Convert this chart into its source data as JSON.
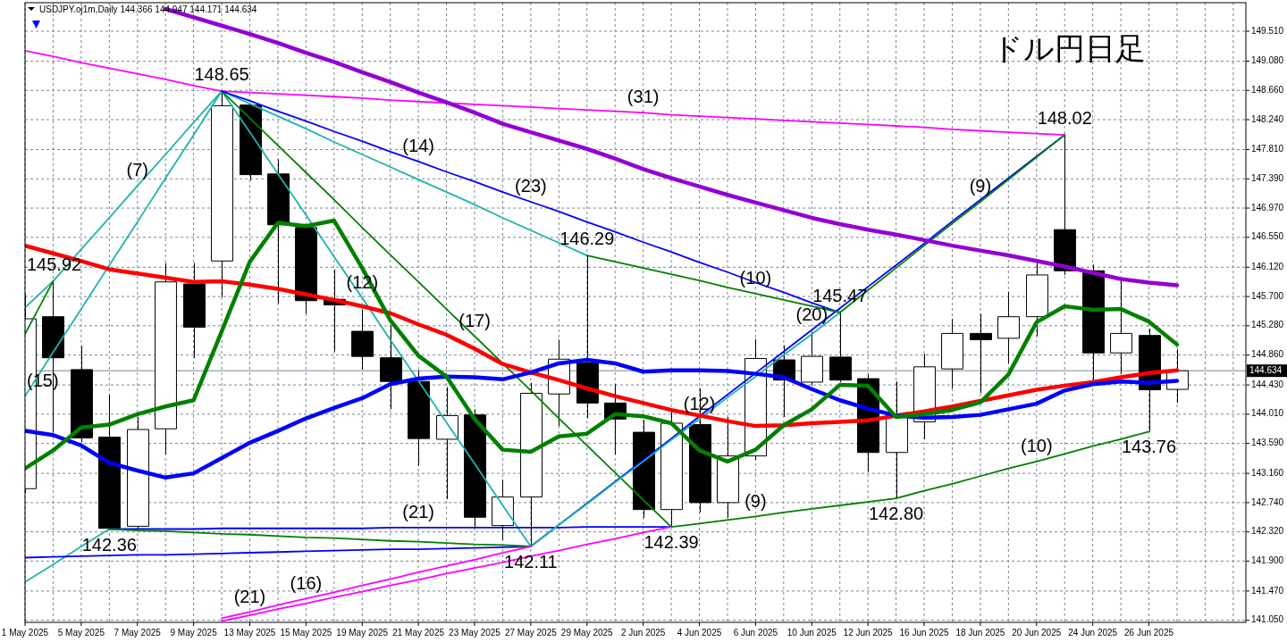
{
  "chart_data": {
    "type": "candlestick",
    "title": "ドル円日足",
    "subtitle": "USDJPY.oj1m,Daily  144.366 144.947 144.171 144.634",
    "categories": [
      "1 May 2025",
      null,
      "5 May 2025",
      null,
      "7 May 2025",
      null,
      "9 May 2025",
      null,
      "13 May 2025",
      null,
      "15 May 2025",
      null,
      "19 May 2025",
      null,
      "21 May 2025",
      null,
      "23 May 2025",
      null,
      "27 May 2025",
      null,
      "29 May 2025",
      null,
      "2 Jun 2025",
      null,
      "4 Jun 2025",
      null,
      "6 Jun 2025",
      null,
      "10 Jun 2025",
      null,
      "12 Jun 2025",
      null,
      "16 Jun 2025",
      null,
      "18 Jun 2025",
      null,
      "20 Jun 2025",
      null,
      "24 Jun 2025",
      null,
      "26 Jun 2025",
      null
    ],
    "ohlc": [
      [
        142.94,
        145.73,
        142.88,
        145.38
      ],
      [
        145.41,
        145.92,
        143.75,
        144.82
      ],
      [
        144.65,
        144.99,
        143.61,
        143.67
      ],
      [
        143.68,
        144.29,
        142.36,
        142.37
      ],
      [
        142.4,
        143.97,
        142.37,
        143.79
      ],
      [
        143.8,
        146.18,
        143.43,
        145.91
      ],
      [
        145.88,
        146.18,
        144.82,
        145.26
      ],
      [
        146.21,
        148.65,
        145.69,
        148.44
      ],
      [
        148.45,
        148.47,
        147.37,
        147.45
      ],
      [
        147.46,
        147.67,
        145.6,
        146.73
      ],
      [
        146.69,
        146.72,
        145.45,
        145.64
      ],
      [
        145.66,
        146.09,
        144.91,
        145.58
      ],
      [
        145.2,
        145.51,
        144.65,
        144.84
      ],
      [
        144.82,
        145.28,
        144.08,
        144.48
      ],
      [
        144.48,
        144.64,
        143.27,
        143.66
      ],
      [
        143.65,
        144.4,
        142.79,
        143.99
      ],
      [
        144.0,
        144.08,
        142.37,
        142.53
      ],
      [
        142.41,
        143.07,
        142.2,
        142.82
      ],
      [
        142.82,
        144.46,
        142.11,
        144.31
      ],
      [
        144.3,
        145.08,
        143.84,
        144.8
      ],
      [
        144.75,
        146.29,
        143.95,
        144.17
      ],
      [
        144.17,
        144.44,
        143.43,
        143.94
      ],
      [
        143.75,
        143.93,
        142.52,
        142.64
      ],
      [
        142.64,
        144.05,
        142.39,
        143.88
      ],
      [
        143.86,
        144.38,
        142.6,
        142.74
      ],
      [
        142.74,
        143.97,
        142.52,
        143.41
      ],
      [
        143.41,
        145.09,
        143.35,
        144.81
      ],
      [
        144.79,
        145.0,
        143.97,
        144.5
      ],
      [
        144.47,
        145.19,
        144.42,
        144.84
      ],
      [
        144.83,
        145.47,
        144.47,
        144.5
      ],
      [
        144.52,
        144.58,
        143.18,
        143.46
      ],
      [
        143.46,
        144.48,
        142.8,
        143.99
      ],
      [
        143.9,
        144.88,
        143.65,
        144.69
      ],
      [
        144.66,
        145.38,
        144.38,
        145.17
      ],
      [
        145.17,
        145.45,
        144.31,
        145.08
      ],
      [
        145.1,
        145.77,
        144.74,
        145.41
      ],
      [
        145.41,
        146.21,
        145.13,
        146.01
      ],
      [
        146.66,
        148.02,
        146.01,
        146.07
      ],
      [
        146.07,
        146.16,
        144.5,
        144.89
      ],
      [
        144.89,
        145.94,
        144.59,
        145.17
      ],
      [
        145.14,
        145.24,
        143.76,
        144.36
      ],
      [
        144.366,
        144.947,
        144.171,
        144.634
      ]
    ],
    "series": [
      {
        "type": "line",
        "color": "#20b2aa",
        "values": [
          145.54,
          145.92,
          146.38,
          146.83,
          147.29,
          147.74,
          148.2,
          148.65,
          null,
          null,
          null,
          null,
          null,
          null,
          null,
          null,
          null,
          null,
          null,
          null,
          null,
          null,
          null,
          null,
          null,
          null,
          null,
          null,
          null,
          null,
          null,
          null,
          null,
          null,
          null,
          null,
          null,
          null,
          null,
          null,
          null,
          null
        ]
      },
      {
        "type": "line",
        "color": "#008000",
        "values": [
          145.16,
          145.92,
          null,
          null,
          null,
          null,
          null,
          null,
          null,
          null,
          null,
          null,
          null,
          null,
          null,
          null,
          null,
          null,
          null,
          null,
          null,
          null,
          null,
          null,
          null,
          null,
          null,
          null,
          null,
          null,
          null,
          null,
          null,
          null,
          null,
          null,
          null,
          null,
          null,
          null,
          null,
          null
        ]
      },
      {
        "type": "line",
        "color": "#20b2aa",
        "values": [
          144.27,
          144.9,
          145.52,
          146.15,
          146.77,
          147.4,
          148.02,
          148.65,
          null,
          null,
          null,
          null,
          null,
          null,
          null,
          null,
          null,
          null,
          null,
          null,
          null,
          null,
          null,
          null,
          null,
          null,
          null,
          null,
          null,
          null,
          null,
          null,
          null,
          null,
          null,
          null,
          null,
          null,
          null,
          null,
          null,
          null
        ]
      },
      {
        "type": "line",
        "color": "#20b2aa",
        "values": [
          141.6,
          141.85,
          142.11,
          142.36,
          null,
          null,
          null,
          null,
          null,
          null,
          null,
          null,
          null,
          null,
          null,
          null,
          null,
          null,
          null,
          null,
          null,
          null,
          null,
          null,
          null,
          null,
          null,
          null,
          null,
          null,
          null,
          null,
          null,
          null,
          null,
          null,
          null,
          null,
          null,
          null,
          null,
          null
        ]
      },
      {
        "type": "line",
        "color": "#0000ff",
        "values": [
          141.95,
          141.96,
          141.97,
          141.98,
          141.99,
          141.99,
          142.0,
          142.01,
          142.02,
          142.03,
          142.04,
          142.05,
          142.06,
          142.07,
          142.07,
          142.08,
          142.09,
          142.1,
          142.11,
          142.42,
          142.73,
          143.04,
          143.35,
          143.66,
          143.98,
          144.29,
          144.6,
          144.91,
          145.22,
          145.53,
          145.84,
          146.15,
          146.46,
          146.78,
          147.09,
          147.4,
          147.71,
          148.02,
          null,
          null,
          null,
          null
        ]
      },
      {
        "type": "line",
        "color": "#ff00ff",
        "values": [
          149.23,
          149.15,
          149.06,
          148.98,
          148.9,
          148.82,
          148.73,
          148.65,
          148.63,
          148.61,
          148.59,
          148.57,
          148.55,
          148.52,
          148.5,
          148.48,
          148.46,
          148.44,
          148.42,
          148.4,
          148.38,
          148.36,
          148.34,
          148.31,
          148.29,
          148.27,
          148.25,
          148.23,
          148.21,
          148.19,
          148.17,
          148.15,
          148.13,
          148.1,
          148.08,
          148.06,
          148.04,
          148.02,
          null,
          null,
          null,
          null
        ]
      },
      {
        "type": "line",
        "color": "#20b2aa",
        "values": [
          null,
          null,
          null,
          null,
          null,
          null,
          null,
          148.65,
          148.47,
          148.29,
          148.11,
          147.92,
          147.74,
          147.56,
          147.38,
          147.2,
          147.02,
          146.83,
          146.65,
          146.47,
          146.29,
          null,
          null,
          null,
          null,
          null,
          null,
          null,
          null,
          null,
          null,
          null,
          null,
          null,
          null,
          null,
          null,
          null,
          null,
          null,
          null,
          null
        ]
      },
      {
        "type": "line",
        "color": "#20b2aa",
        "values": [
          null,
          null,
          null,
          null,
          null,
          null,
          null,
          148.65,
          148.06,
          147.46,
          146.87,
          146.27,
          145.68,
          145.08,
          144.49,
          143.89,
          143.3,
          142.7,
          142.11,
          null,
          null,
          null,
          null,
          null,
          null,
          null,
          null,
          null,
          null,
          null,
          null,
          null,
          null,
          null,
          null,
          null,
          null,
          null,
          null,
          null,
          null,
          null
        ]
      },
      {
        "type": "line",
        "color": "#008000",
        "values": [
          null,
          null,
          null,
          null,
          null,
          null,
          null,
          148.65,
          148.26,
          147.87,
          147.48,
          147.09,
          146.69,
          146.3,
          145.91,
          145.52,
          145.13,
          144.74,
          144.35,
          143.95,
          143.56,
          143.17,
          142.78,
          142.39,
          null,
          null,
          null,
          null,
          null,
          null,
          null,
          null,
          null,
          null,
          null,
          null,
          null,
          null,
          null,
          null,
          null,
          null
        ]
      },
      {
        "type": "line",
        "color": "#0000ff",
        "values": [
          null,
          null,
          null,
          null,
          null,
          null,
          null,
          148.65,
          148.51,
          148.36,
          148.22,
          148.07,
          147.93,
          147.78,
          147.64,
          147.49,
          147.35,
          147.2,
          147.06,
          146.92,
          146.77,
          146.63,
          146.48,
          146.34,
          146.19,
          146.05,
          145.9,
          145.76,
          145.61,
          145.47,
          null,
          null,
          null,
          null,
          null,
          null,
          null,
          null,
          null,
          null,
          null,
          null
        ]
      },
      {
        "type": "line",
        "color": "#008000",
        "values": [
          null,
          null,
          null,
          null,
          null,
          null,
          null,
          null,
          null,
          null,
          null,
          null,
          null,
          null,
          null,
          null,
          null,
          null,
          null,
          null,
          146.29,
          146.2,
          146.11,
          146.02,
          145.93,
          145.83,
          145.74,
          145.65,
          145.56,
          145.47,
          null,
          null,
          null,
          null,
          null,
          null,
          null,
          null,
          null,
          null,
          null,
          null
        ]
      },
      {
        "type": "line",
        "color": "#0000ff",
        "values": [
          null,
          null,
          null,
          142.36,
          142.36,
          142.36,
          142.36,
          142.37,
          142.37,
          142.37,
          142.37,
          142.37,
          142.37,
          142.38,
          142.38,
          142.38,
          142.38,
          142.38,
          142.38,
          142.38,
          142.39,
          142.39,
          142.39,
          142.39,
          null,
          null,
          null,
          null,
          null,
          null,
          null,
          null,
          null,
          null,
          null,
          null,
          null,
          null,
          null,
          null,
          null,
          null
        ]
      },
      {
        "type": "line",
        "color": "#008000",
        "values": [
          null,
          null,
          null,
          142.36,
          142.34,
          142.33,
          142.31,
          142.29,
          142.28,
          142.26,
          142.24,
          142.23,
          142.21,
          142.19,
          142.18,
          142.16,
          142.14,
          142.13,
          142.11,
          null,
          null,
          null,
          null,
          null,
          null,
          null,
          null,
          null,
          null,
          null,
          null,
          null,
          null,
          null,
          null,
          null,
          null,
          null,
          null,
          null,
          null,
          null
        ]
      },
      {
        "type": "line",
        "color": "#20b2aa",
        "values": [
          null,
          null,
          null,
          null,
          null,
          null,
          null,
          null,
          null,
          null,
          null,
          null,
          null,
          null,
          null,
          null,
          null,
          null,
          142.11,
          142.42,
          142.72,
          143.03,
          143.33,
          143.64,
          143.94,
          144.25,
          144.55,
          144.86,
          145.16,
          145.47,
          null,
          null,
          null,
          null,
          null,
          null,
          null,
          null,
          null,
          null,
          null,
          null
        ]
      },
      {
        "type": "line",
        "color": "#008000",
        "values": [
          null,
          null,
          null,
          null,
          null,
          null,
          null,
          null,
          null,
          null,
          null,
          null,
          null,
          null,
          null,
          null,
          null,
          null,
          null,
          null,
          null,
          null,
          null,
          null,
          null,
          null,
          null,
          null,
          null,
          145.47,
          145.79,
          146.11,
          146.43,
          146.75,
          147.06,
          147.38,
          147.7,
          148.02,
          null,
          null,
          null,
          null
        ]
      },
      {
        "type": "line",
        "color": "#008000",
        "values": [
          null,
          null,
          null,
          null,
          null,
          null,
          null,
          null,
          null,
          null,
          null,
          null,
          null,
          null,
          null,
          null,
          null,
          null,
          null,
          null,
          null,
          null,
          null,
          142.39,
          142.44,
          142.49,
          142.54,
          142.6,
          142.65,
          142.7,
          142.75,
          142.8,
          142.91,
          143.01,
          143.12,
          143.23,
          143.33,
          143.44,
          143.55,
          143.65,
          143.76,
          null
        ]
      },
      {
        "type": "line",
        "color": "#ff00ff",
        "values": [
          null,
          null,
          null,
          null,
          null,
          null,
          null,
          141.04,
          141.12,
          141.21,
          141.29,
          141.38,
          141.46,
          141.55,
          141.63,
          141.72,
          141.8,
          141.88,
          141.97,
          142.05,
          142.14,
          142.22,
          142.31,
          142.39,
          null,
          null,
          null,
          null,
          null,
          null,
          null,
          null,
          null,
          null,
          null,
          null,
          null,
          null,
          null,
          null,
          null,
          null
        ]
      },
      {
        "type": "line",
        "color": "#ff00ff",
        "values": [
          null,
          null,
          null,
          null,
          null,
          null,
          null,
          141.08,
          141.17,
          141.27,
          141.36,
          141.45,
          141.55,
          141.64,
          141.74,
          141.83,
          141.92,
          142.02,
          142.11,
          null,
          null,
          null,
          null,
          null,
          null,
          null,
          null,
          null,
          null,
          null,
          null,
          null,
          null,
          null,
          null,
          null,
          null,
          null,
          null,
          null,
          null,
          null
        ]
      },
      {
        "type": "line",
        "color": "#9400d3",
        "values": [
          null,
          null,
          null,
          null,
          null,
          149.83,
          149.71,
          149.59,
          149.47,
          149.34,
          149.2,
          149.07,
          148.92,
          148.78,
          148.63,
          148.49,
          148.34,
          148.18,
          148.06,
          147.94,
          147.82,
          147.68,
          147.53,
          147.4,
          147.28,
          147.16,
          147.05,
          146.94,
          146.83,
          146.74,
          146.66,
          146.59,
          146.51,
          146.43,
          146.36,
          146.29,
          146.21,
          146.13,
          146.04,
          145.95,
          145.9,
          145.86
        ]
      },
      {
        "type": "line",
        "color": "#ff0000",
        "values": [
          146.43,
          146.32,
          146.21,
          146.09,
          146.03,
          145.97,
          145.91,
          145.92,
          145.87,
          145.81,
          145.73,
          145.65,
          145.56,
          145.46,
          145.3,
          145.15,
          144.95,
          144.73,
          144.61,
          144.5,
          144.38,
          144.27,
          144.17,
          144.07,
          143.99,
          143.91,
          143.84,
          143.85,
          143.88,
          143.9,
          143.92,
          143.99,
          144.05,
          144.12,
          144.2,
          144.28,
          144.36,
          144.42,
          144.47,
          144.54,
          144.6,
          144.64
        ]
      },
      {
        "type": "line",
        "color": "#0000ff",
        "values": [
          143.77,
          143.71,
          143.56,
          143.31,
          143.2,
          143.1,
          143.16,
          143.38,
          143.6,
          143.77,
          143.95,
          144.1,
          144.24,
          144.44,
          144.52,
          144.55,
          144.54,
          144.51,
          144.61,
          144.74,
          144.79,
          144.74,
          144.62,
          144.64,
          144.64,
          144.63,
          144.59,
          144.54,
          144.37,
          144.21,
          144.09,
          143.99,
          143.96,
          143.97,
          144.0,
          144.08,
          144.16,
          144.35,
          144.44,
          144.48,
          144.46,
          144.49
        ]
      },
      {
        "type": "line",
        "color": "#008000",
        "values": [
          143.23,
          143.49,
          143.82,
          143.86,
          144.01,
          144.12,
          144.21,
          145.2,
          146.2,
          146.76,
          146.71,
          146.79,
          146.11,
          145.36,
          144.85,
          144.55,
          143.94,
          143.5,
          143.47,
          143.69,
          143.73,
          144.01,
          143.98,
          143.88,
          143.49,
          143.33,
          143.5,
          143.85,
          144.08,
          144.43,
          144.42,
          143.97,
          144.01,
          144.07,
          144.18,
          144.58,
          145.33,
          145.56,
          145.51,
          145.52,
          145.34,
          145.01
        ]
      }
    ],
    "ylim": [
      141.02,
      149.92
    ],
    "yticks": [
      {
        "value": 149.51,
        "label": "149.510"
      },
      {
        "value": 149.08,
        "label": "149.080"
      },
      {
        "value": 148.66,
        "label": "148.660"
      },
      {
        "value": 148.24,
        "label": "148.240"
      },
      {
        "value": 147.81,
        "label": "147.810"
      },
      {
        "value": 147.39,
        "label": "147.390"
      },
      {
        "value": 146.97,
        "label": "146.970"
      },
      {
        "value": 146.55,
        "label": "146.550"
      },
      {
        "value": 146.12,
        "label": "146.120"
      },
      {
        "value": 145.7,
        "label": "145.700"
      },
      {
        "value": 145.28,
        "label": "145.280"
      },
      {
        "value": 144.86,
        "label": "144.860"
      },
      {
        "value": 144.43,
        "label": "144.430"
      },
      {
        "value": 144.01,
        "label": "144.010"
      },
      {
        "value": 143.59,
        "label": "143.590"
      },
      {
        "value": 143.16,
        "label": "143.160"
      },
      {
        "value": 142.74,
        "label": "142.740"
      },
      {
        "value": 142.32,
        "label": "142.320"
      },
      {
        "value": 141.9,
        "label": "141.900"
      },
      {
        "value": 141.47,
        "label": "141.470"
      },
      {
        "value": 141.05,
        "label": "141.050"
      }
    ],
    "grid": true,
    "ref_lines": [
      {
        "axis": "y",
        "value": 144.634,
        "label": "144.634",
        "color": "#778899"
      }
    ],
    "annotations": [
      {
        "text": "145.92",
        "y": 145.92
      },
      {
        "text": "148.65",
        "y": 148.65
      },
      {
        "text": "142.36",
        "y": 142.36
      },
      {
        "text": "142.11",
        "x": "27 May 2025",
        "y": 142.11
      },
      {
        "text": "146.29",
        "x": "29 May 2025",
        "y": 146.29
      },
      {
        "text": "142.39",
        "y": 142.39
      },
      {
        "text": "145.47",
        "y": 145.47
      },
      {
        "text": "142.80",
        "y": 142.8
      },
      {
        "text": "148.02",
        "y": 148.02
      },
      {
        "text": "143.76",
        "x": "26 Jun 2025",
        "y": 143.76
      },
      {
        "text": "(7)",
        "x": "7 May 2025",
        "y": 147.29
      },
      {
        "text": "(15)",
        "x": "1 May 2025",
        "y": 144.27
      },
      {
        "text": "(14)",
        "x": "21 May 2025",
        "y": 147.64
      },
      {
        "text": "(23)",
        "x": "27 May 2025",
        "y": 147.06
      },
      {
        "text": "(31)",
        "x": "2 Jun 2025",
        "y": 148.34
      },
      {
        "text": "(12)",
        "x": "19 May 2025",
        "y": 145.68
      },
      {
        "text": "(17)",
        "x": "23 May 2025",
        "y": 145.13
      },
      {
        "text": "(10)",
        "x": "6 Jun 2025",
        "y": 145.74
      },
      {
        "text": "(20)",
        "x": "10 Jun 2025",
        "y": 145.22
      },
      {
        "text": "(9)",
        "x": "18 Jun 2025",
        "y": 147.06
      },
      {
        "text": "(12)",
        "x": "4 Jun 2025",
        "y": 143.94
      },
      {
        "text": "(21)",
        "x": "21 May 2025",
        "y": 142.38
      },
      {
        "text": "(21)",
        "x": "13 May 2025",
        "y": 141.17
      },
      {
        "text": "(16)",
        "x": "15 May 2025",
        "y": 141.36
      },
      {
        "text": "(9)",
        "x": "6 Jun 2025",
        "y": 142.54
      },
      {
        "text": "(10)",
        "x": "20 Jun 2025",
        "y": 143.33
      }
    ]
  }
}
